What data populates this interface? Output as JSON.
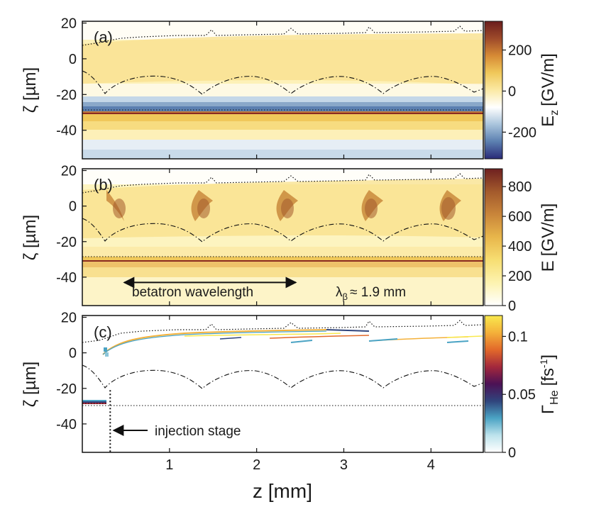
{
  "chart_data": [
    {
      "type": "heatmap",
      "panel_label": "(a)",
      "ylabel": "ζ [µm]",
      "xlim": [
        0.0,
        4.6
      ],
      "ylim": [
        -56,
        21
      ],
      "yticks": [
        "20",
        "0",
        "-20",
        "-40"
      ],
      "colorbar": {
        "label": "E",
        "label_sub": "z",
        "label_unit": "[GV/m]",
        "range": [
          -330,
          340
        ],
        "ticks": [
          "200",
          "0",
          "-200"
        ],
        "colors": [
          "#2a2a78",
          "#5b7fb0",
          "#a9c4dc",
          "#ffffff",
          "#fbe9a4",
          "#f0c85a",
          "#d68a35",
          "#9e4a2a",
          "#6b1d1d"
        ]
      },
      "features": {
        "driver_zeta": -31,
        "rear_boundary_zeta": -28.5,
        "front_boundary_zeta": [
          8,
          12
        ],
        "betatron_minima_z": [
          0.26,
          1.45,
          2.45,
          3.5,
          4.5
        ]
      }
    },
    {
      "type": "heatmap",
      "panel_label": "(b)",
      "ylabel": "ζ [µm]",
      "xlim": [
        0.0,
        4.6
      ],
      "ylim": [
        -56,
        21
      ],
      "yticks": [
        "20",
        "0",
        "-20",
        "-40"
      ],
      "colorbar": {
        "label": "E",
        "label_sub": "",
        "label_unit": "[GV/m]",
        "range": [
          0,
          920
        ],
        "ticks": [
          "800",
          "600",
          "400",
          "200",
          "0"
        ],
        "colors": [
          "#ffffff",
          "#fdf3b0",
          "#f7de72",
          "#e8b64b",
          "#c9853a",
          "#a35a2c",
          "#6e2020"
        ]
      },
      "annotations": {
        "arrow_label": "betatron wavelength",
        "lambda_symbol": "λ",
        "lambda_sub": "β",
        "lambda_value": "≈ 1.9 mm",
        "arrow_z": [
          0.48,
          2.45
        ],
        "arrow_zeta": -43
      }
    },
    {
      "type": "heatmap",
      "panel_label": "(c)",
      "ylabel": "ζ [µm]",
      "xlabel": "z [mm]",
      "xlim": [
        0.0,
        4.6
      ],
      "ylim": [
        -56,
        21
      ],
      "xticks": [
        "1",
        "2",
        "3",
        "4"
      ],
      "yticks": [
        "20",
        "0",
        "-20",
        "-40"
      ],
      "colorbar": {
        "label": "Γ",
        "label_sub": "He",
        "label_unit": "[fs",
        "label_sup": "-1",
        "label_close": "]",
        "range": [
          0,
          0.118
        ],
        "ticks": [
          "0.1",
          "0.05",
          "0"
        ],
        "colors": [
          "#ffffff",
          "#bde3ec",
          "#4aa3c4",
          "#30447c",
          "#4c1155",
          "#a3283c",
          "#e2692a",
          "#f4b13a",
          "#f9e94e"
        ]
      },
      "annotations": {
        "injection_label": "injection stage",
        "injection_z": 0.32
      }
    }
  ]
}
